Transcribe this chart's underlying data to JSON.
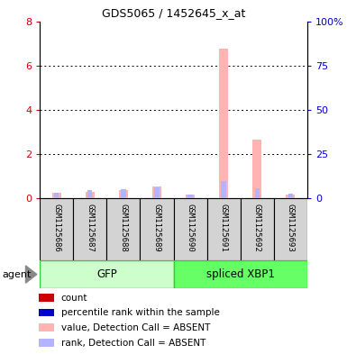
{
  "title": "GDS5065 / 1452645_x_at",
  "samples": [
    "GSM1125686",
    "GSM1125687",
    "GSM1125688",
    "GSM1125689",
    "GSM1125690",
    "GSM1125691",
    "GSM1125692",
    "GSM1125693"
  ],
  "value_absent": [
    0.25,
    0.3,
    0.38,
    0.55,
    0.18,
    6.75,
    2.65,
    0.18
  ],
  "rank_absent_pct": [
    3.0,
    4.5,
    5.0,
    6.0,
    2.0,
    9.5,
    5.5,
    2.5
  ],
  "count_values": [
    0.0,
    0.0,
    0.0,
    0.0,
    0.0,
    0.0,
    0.0,
    0.0
  ],
  "rank_values_pct": [
    0.0,
    0.0,
    0.0,
    0.0,
    0.0,
    0.0,
    0.0,
    0.0
  ],
  "ylim_left": [
    0,
    8
  ],
  "ylim_right": [
    0,
    100
  ],
  "yticks_left": [
    0,
    2,
    4,
    6,
    8
  ],
  "yticks_right": [
    0,
    25,
    50,
    75,
    100
  ],
  "left_color": "#cc0000",
  "right_color": "#0000cc",
  "value_absent_color": "#ffb3b3",
  "rank_absent_color": "#b3b3ff",
  "count_color": "#cc0000",
  "rank_color": "#0000cc",
  "gfp_color_light": "#ccffcc",
  "gfp_color_dark": "#33cc33",
  "xbp1_color_light": "#66ff66",
  "xbp1_color_dark": "#33cc33",
  "agent_label": "agent",
  "legend_items": [
    {
      "color": "#cc0000",
      "label": "count"
    },
    {
      "color": "#0000cc",
      "label": "percentile rank within the sample"
    },
    {
      "color": "#ffb3b3",
      "label": "value, Detection Call = ABSENT"
    },
    {
      "color": "#b3b3ff",
      "label": "rank, Detection Call = ABSENT"
    }
  ]
}
